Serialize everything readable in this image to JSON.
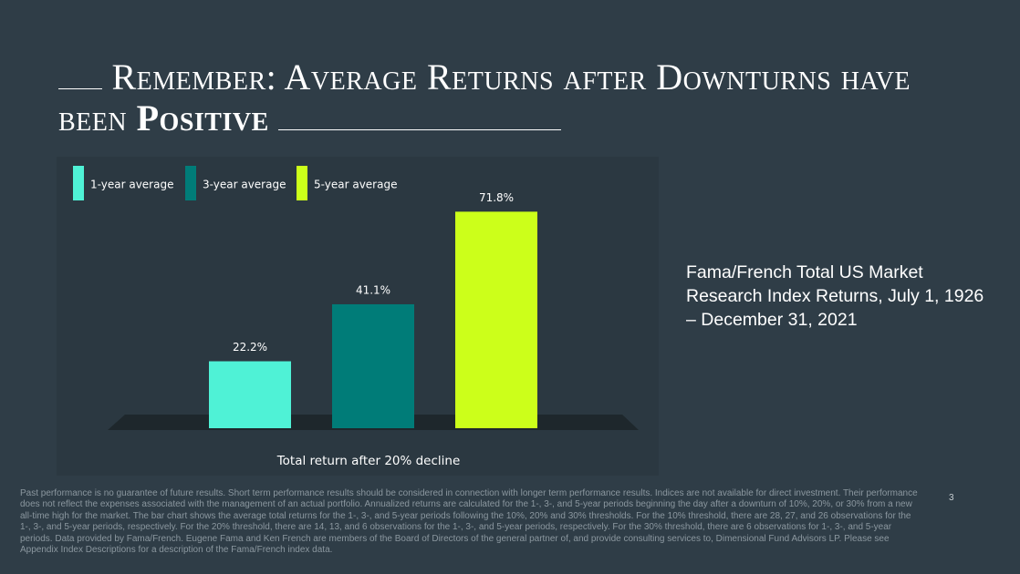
{
  "title": {
    "text": "Remember: Average Returns after Downturns have been",
    "emphasis": "Positive"
  },
  "chart_data": {
    "type": "bar",
    "categories": [
      "Total return after 20% decline"
    ],
    "series": [
      {
        "name": "1-year average",
        "color": "#4ff2d6",
        "values": [
          22.2
        ],
        "value_labels": [
          "22.2%"
        ]
      },
      {
        "name": "3-year average",
        "color": "#007c78",
        "values": [
          41.1
        ],
        "value_labels": [
          "41.1%"
        ]
      },
      {
        "name": "5-year average",
        "color": "#ccff1a",
        "values": [
          71.8
        ],
        "value_labels": [
          "71.8%"
        ]
      }
    ]
  },
  "source_note": "Fama/French Total US Market Research Index Returns, July 1, 1926 – December 31, 2021",
  "disclaimer": "Past performance is no guarantee of future results. Short term performance results should be considered in connection with longer term performance results. Indices are not available for direct investment. Their performance does not reflect the expenses associated with the management of an actual portfolio. Annualized returns are calculated for the 1-, 3-, and 5-year periods beginning the day after a downturn of 10%, 20%, or 30% from a new all-time high for the market. The bar chart shows the average total returns for the 1-, 3-, and 5-year periods following the 10%, 20% and 30% thresholds. For the 10% threshold, there are 28, 27, and 26 observations for the 1-, 3-, and 5-year periods, respectively. For the 20% threshold, there are 14, 13, and 6 observations for the 1-, 3-, and 5-year periods, respectively. For the 30% threshold, there are 6 observations for 1-, 3-, and 5-year periods. Data provided by Fama/French. Eugene Fama and Ken French are members of the Board of Directors of the general partner of, and provide consulting services to, Dimensional Fund Advisors LP. Please see Appendix Index Descriptions for a description of the Fama/French index data.",
  "page_number": "3"
}
